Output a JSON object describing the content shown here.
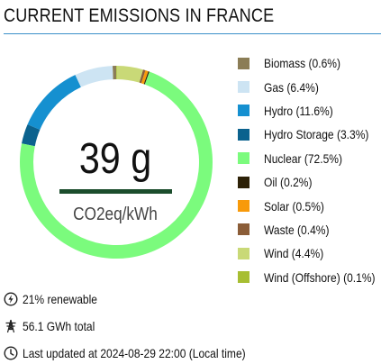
{
  "header": {
    "title": "CURRENT EMISSIONS IN FRANCE"
  },
  "summary": {
    "intensity_value": "39 g",
    "intensity_unit": "CO2eq/kWh",
    "intensity_bar_color": "#1b4d2c"
  },
  "chart_data": {
    "type": "pie",
    "variant": "donut",
    "start": "top",
    "direction": "counterclockwise",
    "slices": [
      {
        "label": "Biomass (0.6%)",
        "name": "Biomass",
        "value": 0.6,
        "color": "#8b7d56"
      },
      {
        "label": "Gas (6.4%)",
        "name": "Gas",
        "value": 6.4,
        "color": "#cde4f3"
      },
      {
        "label": "Hydro (11.6%)",
        "name": "Hydro",
        "value": 11.6,
        "color": "#1590d0"
      },
      {
        "label": "Hydro Storage (3.3%)",
        "name": "Hydro Storage",
        "value": 3.3,
        "color": "#0b628e"
      },
      {
        "label": "Nuclear (72.5%)",
        "name": "Nuclear",
        "value": 72.5,
        "color": "#7bfb7d"
      },
      {
        "label": "Oil (0.2%)",
        "name": "Oil",
        "value": 0.2,
        "color": "#2d2107"
      },
      {
        "label": "Solar (0.5%)",
        "name": "Solar",
        "value": 0.5,
        "color": "#f89a0a"
      },
      {
        "label": "Waste (0.4%)",
        "name": "Waste",
        "value": 0.4,
        "color": "#8b5d38"
      },
      {
        "label": "Wind (4.4%)",
        "name": "Wind",
        "value": 4.4,
        "color": "#c9d977"
      },
      {
        "label": "Wind (Offshore) (0.1%)",
        "name": "Wind (Offshore)",
        "value": 0.1,
        "color": "#a7be32"
      }
    ],
    "ring_order_from_top": [
      "Biomass",
      "Gas",
      "Hydro",
      "Hydro Storage",
      "Nuclear",
      "Oil",
      "Solar",
      "Waste",
      "Wind",
      "Wind (Offshore)"
    ],
    "ring_order_note": "ignored"
  },
  "footer": {
    "renewable": "21% renewable",
    "total": "56.1 GWh total",
    "updated": "Last updated at 2024-08-29 22:00 (Local time)"
  },
  "icons": {
    "renewable": "lightning-circle-icon",
    "total": "power-tower-icon",
    "updated": "clock-icon"
  }
}
